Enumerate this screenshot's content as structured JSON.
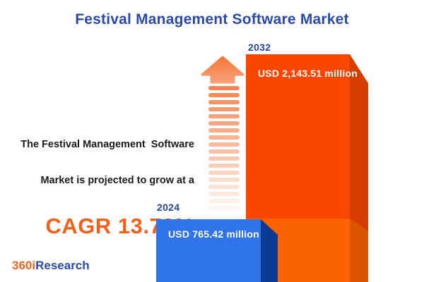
{
  "title": "Festival Management Software Market",
  "annotation": {
    "line1": "The Festival Management  Software",
    "line2": "Market is projected to grow at a",
    "cagr": "CAGR 13.73%"
  },
  "bars": [
    {
      "year": "2024",
      "label": "USD 765.42 million"
    },
    {
      "year": "2032",
      "label": "USD 2,143.51 million"
    }
  ],
  "logo": {
    "part1": "360i",
    "part2": "Research"
  },
  "colors": {
    "background": "#ffffff",
    "title_blue": "#2B4AA8",
    "year_blue": "#24439F",
    "text_dark": "#1B1B1B",
    "cagr_orange": "#F2601C",
    "bar_blue_front": "#2F74E8",
    "bar_blue_side": "#0B3A94",
    "bar_orange_front": "#F94700",
    "bar_orange_front_light": "#FB6200",
    "bar_orange_side": "#D63E00",
    "bar_orange_side_light": "#DE5500",
    "arrow_salmon": "#F0804B",
    "logo_orange": "#F26322",
    "logo_blue": "#2B4AA8"
  },
  "chart_data": {
    "type": "bar",
    "title": "Festival Management Software Market",
    "categories": [
      "2024",
      "2032"
    ],
    "values": [
      765.42,
      2143.51
    ],
    "unit": "USD million",
    "data_labels": [
      "USD 765.42 million",
      "USD 2,143.51 million"
    ],
    "cagr_percent": 13.73,
    "annotation": "The Festival Management Software Market is projected to grow at a CAGR 13.73%",
    "bar_colors": [
      "#2F74E8",
      "#F94700"
    ],
    "legend": "none",
    "axes_visible": false,
    "style": "3d-infographic, bars flush to bottom edge"
  }
}
